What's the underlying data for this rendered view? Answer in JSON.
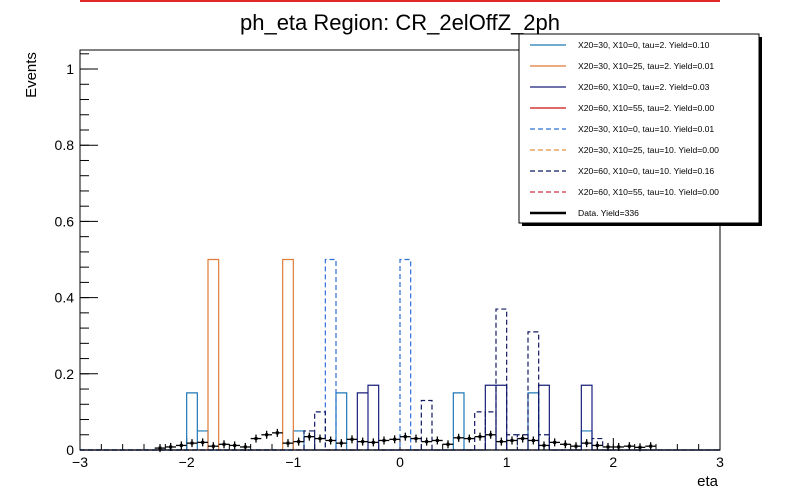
{
  "chart_data": {
    "type": "histogram",
    "title": "ph_eta Region: CR_2elOffZ_2ph",
    "xlabel": "eta",
    "ylabel": "Events",
    "xlim": [
      -3,
      3
    ],
    "ylim": [
      0,
      1.05
    ],
    "x_ticks": [
      -3,
      -2,
      -1,
      0,
      1,
      2,
      3
    ],
    "x_tick_labels": [
      "−3",
      "−2",
      "−1",
      "0",
      "1",
      "2",
      "3"
    ],
    "y_ticks": [
      0,
      0.2,
      0.4,
      0.6,
      0.8,
      1
    ],
    "y_tick_labels": [
      "0",
      "0.2",
      "0.4",
      "0.6",
      "0.8",
      "1"
    ],
    "bin_width": 0.1,
    "legend_position": "top-right",
    "series": [
      {
        "name": "X20=30, X10=0, tau=2. Yield=0.10",
        "color": "#1f77b4",
        "dash": "solid",
        "bins": [
          [
            -2.0,
            0.15
          ],
          [
            -1.9,
            0.05
          ],
          [
            -1.0,
            0.05
          ],
          [
            -0.6,
            0.15
          ],
          [
            0.5,
            0.15
          ],
          [
            1.2,
            0.15
          ],
          [
            1.7,
            0.05
          ]
        ]
      },
      {
        "name": "X20=30, X10=25, tau=2. Yield=0.01",
        "color": "#e07b39",
        "dash": "solid",
        "bins": [
          [
            -1.8,
            0.5
          ],
          [
            -1.1,
            0.5
          ]
        ]
      },
      {
        "name": "X20=60, X10=0, tau=2. Yield=0.03",
        "color": "#1a1f7a",
        "dash": "solid",
        "bins": [
          [
            -0.4,
            0.15
          ],
          [
            -0.3,
            0.17
          ],
          [
            0.8,
            0.17
          ],
          [
            0.9,
            0.17
          ],
          [
            1.3,
            0.17
          ],
          [
            1.7,
            0.17
          ]
        ]
      },
      {
        "name": "X20=60, X10=55, tau=2. Yield=0.00",
        "color": "#cc1111",
        "dash": "solid",
        "bins": []
      },
      {
        "name": "X20=30, X10=0, tau=10. Yield=0.01",
        "color": "#2d6fd6",
        "dash": "dashed",
        "bins": [
          [
            -0.7,
            0.5
          ],
          [
            0.0,
            0.5
          ]
        ]
      },
      {
        "name": "X20=30, X10=25, tau=10. Yield=0.00",
        "color": "#e0913a",
        "dash": "dashed",
        "bins": []
      },
      {
        "name": "X20=60, X10=0, tau=10. Yield=0.16",
        "color": "#111a60",
        "dash": "dashed",
        "bins": [
          [
            -0.9,
            0.05
          ],
          [
            -0.8,
            0.1
          ],
          [
            0.2,
            0.13
          ],
          [
            0.7,
            0.1
          ],
          [
            0.8,
            0.1
          ],
          [
            0.9,
            0.37
          ],
          [
            1.0,
            0.04
          ],
          [
            1.1,
            0.04
          ],
          [
            1.2,
            0.31
          ],
          [
            1.3,
            0.04
          ],
          [
            1.8,
            0.03
          ]
        ]
      },
      {
        "name": "X20=60, X10=55, tau=10. Yield=0.00",
        "color": "#cc3344",
        "dash": "dashed",
        "bins": []
      },
      {
        "name": "Data. Yield=336",
        "color": "#000000",
        "type": "data",
        "points": [
          [
            -2.25,
            0.005
          ],
          [
            -2.15,
            0.008
          ],
          [
            -2.05,
            0.012
          ],
          [
            -1.95,
            0.018
          ],
          [
            -1.85,
            0.02
          ],
          [
            -1.75,
            0.01
          ],
          [
            -1.65,
            0.015
          ],
          [
            -1.55,
            0.012
          ],
          [
            -1.45,
            0.008
          ],
          [
            -1.35,
            0.03
          ],
          [
            -1.25,
            0.04
          ],
          [
            -1.15,
            0.045
          ],
          [
            -1.05,
            0.018
          ],
          [
            -0.95,
            0.022
          ],
          [
            -0.85,
            0.035
          ],
          [
            -0.75,
            0.03
          ],
          [
            -0.65,
            0.025
          ],
          [
            -0.55,
            0.018
          ],
          [
            -0.45,
            0.028
          ],
          [
            -0.35,
            0.022
          ],
          [
            -0.25,
            0.02
          ],
          [
            -0.15,
            0.025
          ],
          [
            -0.05,
            0.028
          ],
          [
            0.05,
            0.035
          ],
          [
            0.15,
            0.03
          ],
          [
            0.25,
            0.022
          ],
          [
            0.35,
            0.025
          ],
          [
            0.45,
            0.015
          ],
          [
            0.55,
            0.032
          ],
          [
            0.65,
            0.03
          ],
          [
            0.75,
            0.035
          ],
          [
            0.85,
            0.04
          ],
          [
            0.95,
            0.022
          ],
          [
            1.05,
            0.025
          ],
          [
            1.15,
            0.03
          ],
          [
            1.25,
            0.025
          ],
          [
            1.35,
            0.012
          ],
          [
            1.45,
            0.02
          ],
          [
            1.55,
            0.015
          ],
          [
            1.65,
            0.01
          ],
          [
            1.75,
            0.018
          ],
          [
            1.85,
            0.012
          ],
          [
            1.95,
            0.008
          ],
          [
            2.05,
            0.008
          ],
          [
            2.15,
            0.01
          ],
          [
            2.25,
            0.007
          ],
          [
            2.35,
            0.01
          ]
        ]
      }
    ]
  }
}
